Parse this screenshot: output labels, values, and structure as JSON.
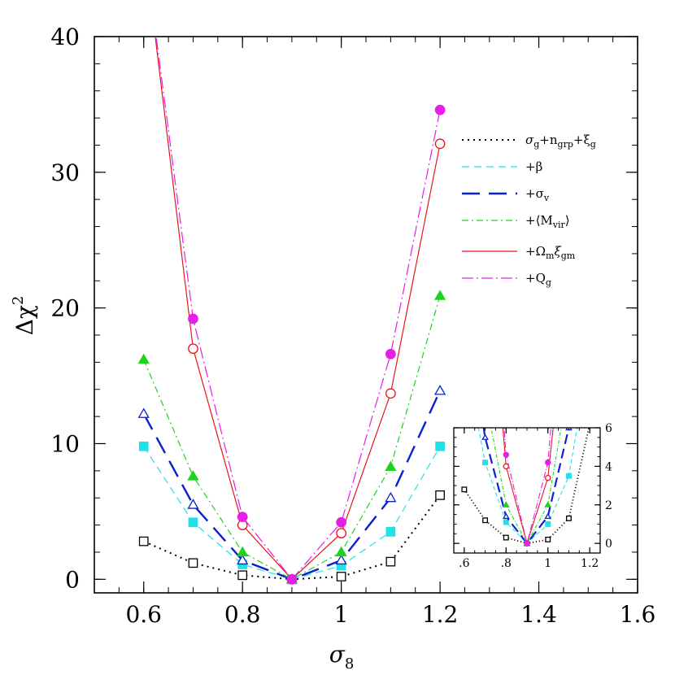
{
  "chart_data": {
    "type": "line",
    "xlabel_symbol": "σ",
    "xlabel_sub": "8",
    "ylabel_main": "Δχ",
    "ylabel_sup": "2",
    "xlim": [
      0.5,
      1.6
    ],
    "ylim": [
      -1,
      40
    ],
    "x_ticks": [
      0.6,
      0.8,
      1,
      1.2,
      1.4,
      1.6
    ],
    "x_tick_labels": [
      "0.6",
      "0.8",
      "1",
      "1.2",
      "1.4",
      "1.6"
    ],
    "y_ticks": [
      0,
      10,
      20,
      30,
      40
    ],
    "y_tick_labels": [
      "0",
      "10",
      "20",
      "30",
      "40"
    ],
    "x": [
      0.6,
      0.7,
      0.8,
      0.9,
      1.0,
      1.1,
      1.2
    ],
    "series": [
      {
        "name": "σg+ngrp+ξg",
        "color": "#000000",
        "dash": "2,5",
        "width": 2,
        "marker": "open-square",
        "values": [
          2.8,
          1.2,
          0.3,
          0.0,
          0.2,
          1.3,
          6.2
        ]
      },
      {
        "name": "+β",
        "color": "#22e0e8",
        "dash": "9,6",
        "width": 1.2,
        "marker": "filled-square",
        "values": [
          9.8,
          4.2,
          1.1,
          0.0,
          1.0,
          3.5,
          9.8
        ]
      },
      {
        "name": "+σv",
        "color": "#0a1fd0",
        "dash": "22,11",
        "width": 2.4,
        "marker": "open-triangle",
        "values": [
          12.2,
          5.5,
          1.4,
          0.0,
          1.4,
          6.0,
          13.9
        ]
      },
      {
        "name": "+⟨Mvir⟩",
        "color": "#1ed21e",
        "dash": "8,4,2,4",
        "width": 1.2,
        "marker": "filled-triangle",
        "values": [
          16.2,
          7.6,
          2.0,
          0.0,
          2.0,
          8.3,
          20.9
        ]
      },
      {
        "name": "+Ωmξgm",
        "color": "#e8141e",
        "dash": "",
        "width": 1.2,
        "marker": "open-circle",
        "values": [
          47.0,
          17.0,
          4.0,
          0.0,
          3.4,
          13.7,
          32.1
        ]
      },
      {
        "name": "+Qg",
        "color": "#e61ee6",
        "dash": "14,4,2,4",
        "width": 1.2,
        "marker": "filled-circle",
        "values": [
          47.0,
          19.2,
          4.6,
          0.0,
          4.2,
          16.6,
          34.6
        ]
      }
    ],
    "legend_position": "top-right",
    "legend": [
      {
        "base": "σ",
        "sub": "g",
        "base2": "+n",
        "sub2": "grp",
        "base3": "+ξ",
        "sub3": "g"
      },
      {
        "text": "+β"
      },
      {
        "base": "+σ",
        "sub": "v"
      },
      {
        "base": "+⟨M",
        "sub": "vir",
        "base2": "⟩"
      },
      {
        "base": "+Ω",
        "sub": "m",
        "base2": "ξ",
        "sub2": "gm"
      },
      {
        "base": "+Q",
        "sub": "g"
      }
    ],
    "inset": {
      "xlim": [
        0.55,
        1.25
      ],
      "ylim": [
        -0.5,
        6
      ],
      "x_ticks": [
        0.6,
        0.8,
        1,
        1.2
      ],
      "x_tick_labels": [
        ".6",
        ".8",
        "1",
        "1.2"
      ],
      "y_ticks": [
        0,
        2,
        4,
        6
      ],
      "y_tick_labels": [
        "0",
        "2",
        "4",
        "6"
      ]
    }
  }
}
